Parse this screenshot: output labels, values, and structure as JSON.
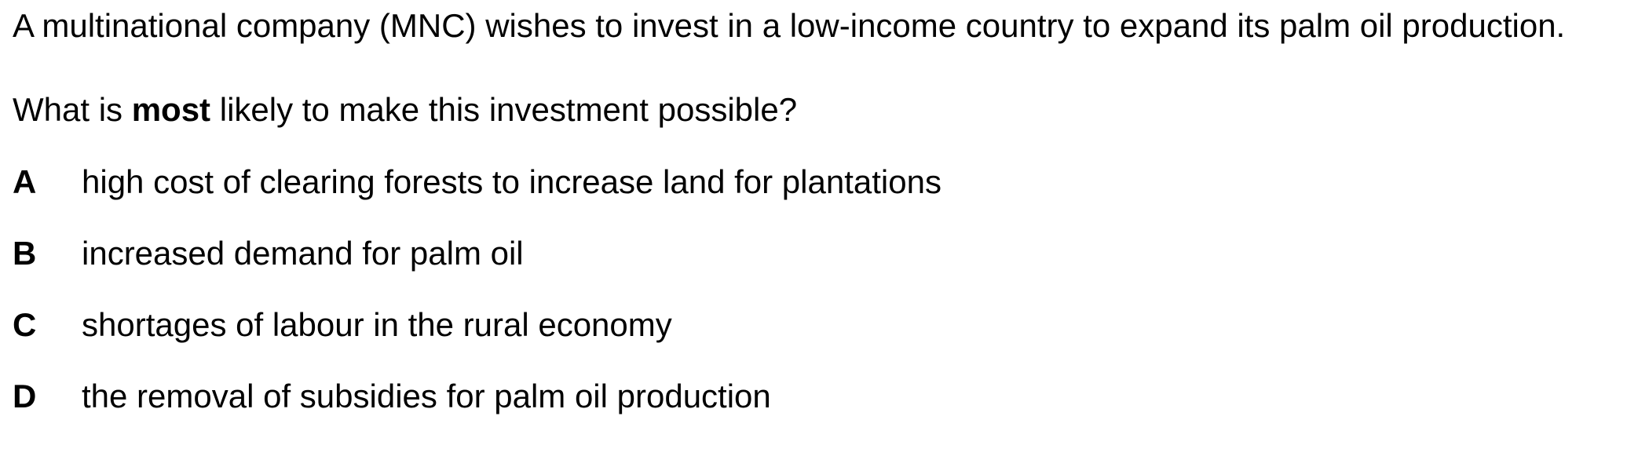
{
  "question": {
    "stem": "A multinational company (MNC) wishes to invest in a low-income country to expand its palm oil production.",
    "prompt_before": "What is ",
    "prompt_emphasis": "most",
    "prompt_after": " likely to make this investment possible?"
  },
  "options": [
    {
      "letter": "A",
      "text": "high cost of clearing forests to increase land for plantations"
    },
    {
      "letter": "B",
      "text": "increased demand for palm oil"
    },
    {
      "letter": "C",
      "text": "shortages of labour in the rural economy"
    },
    {
      "letter": "D",
      "text": "the removal of subsidies for palm oil production"
    }
  ]
}
